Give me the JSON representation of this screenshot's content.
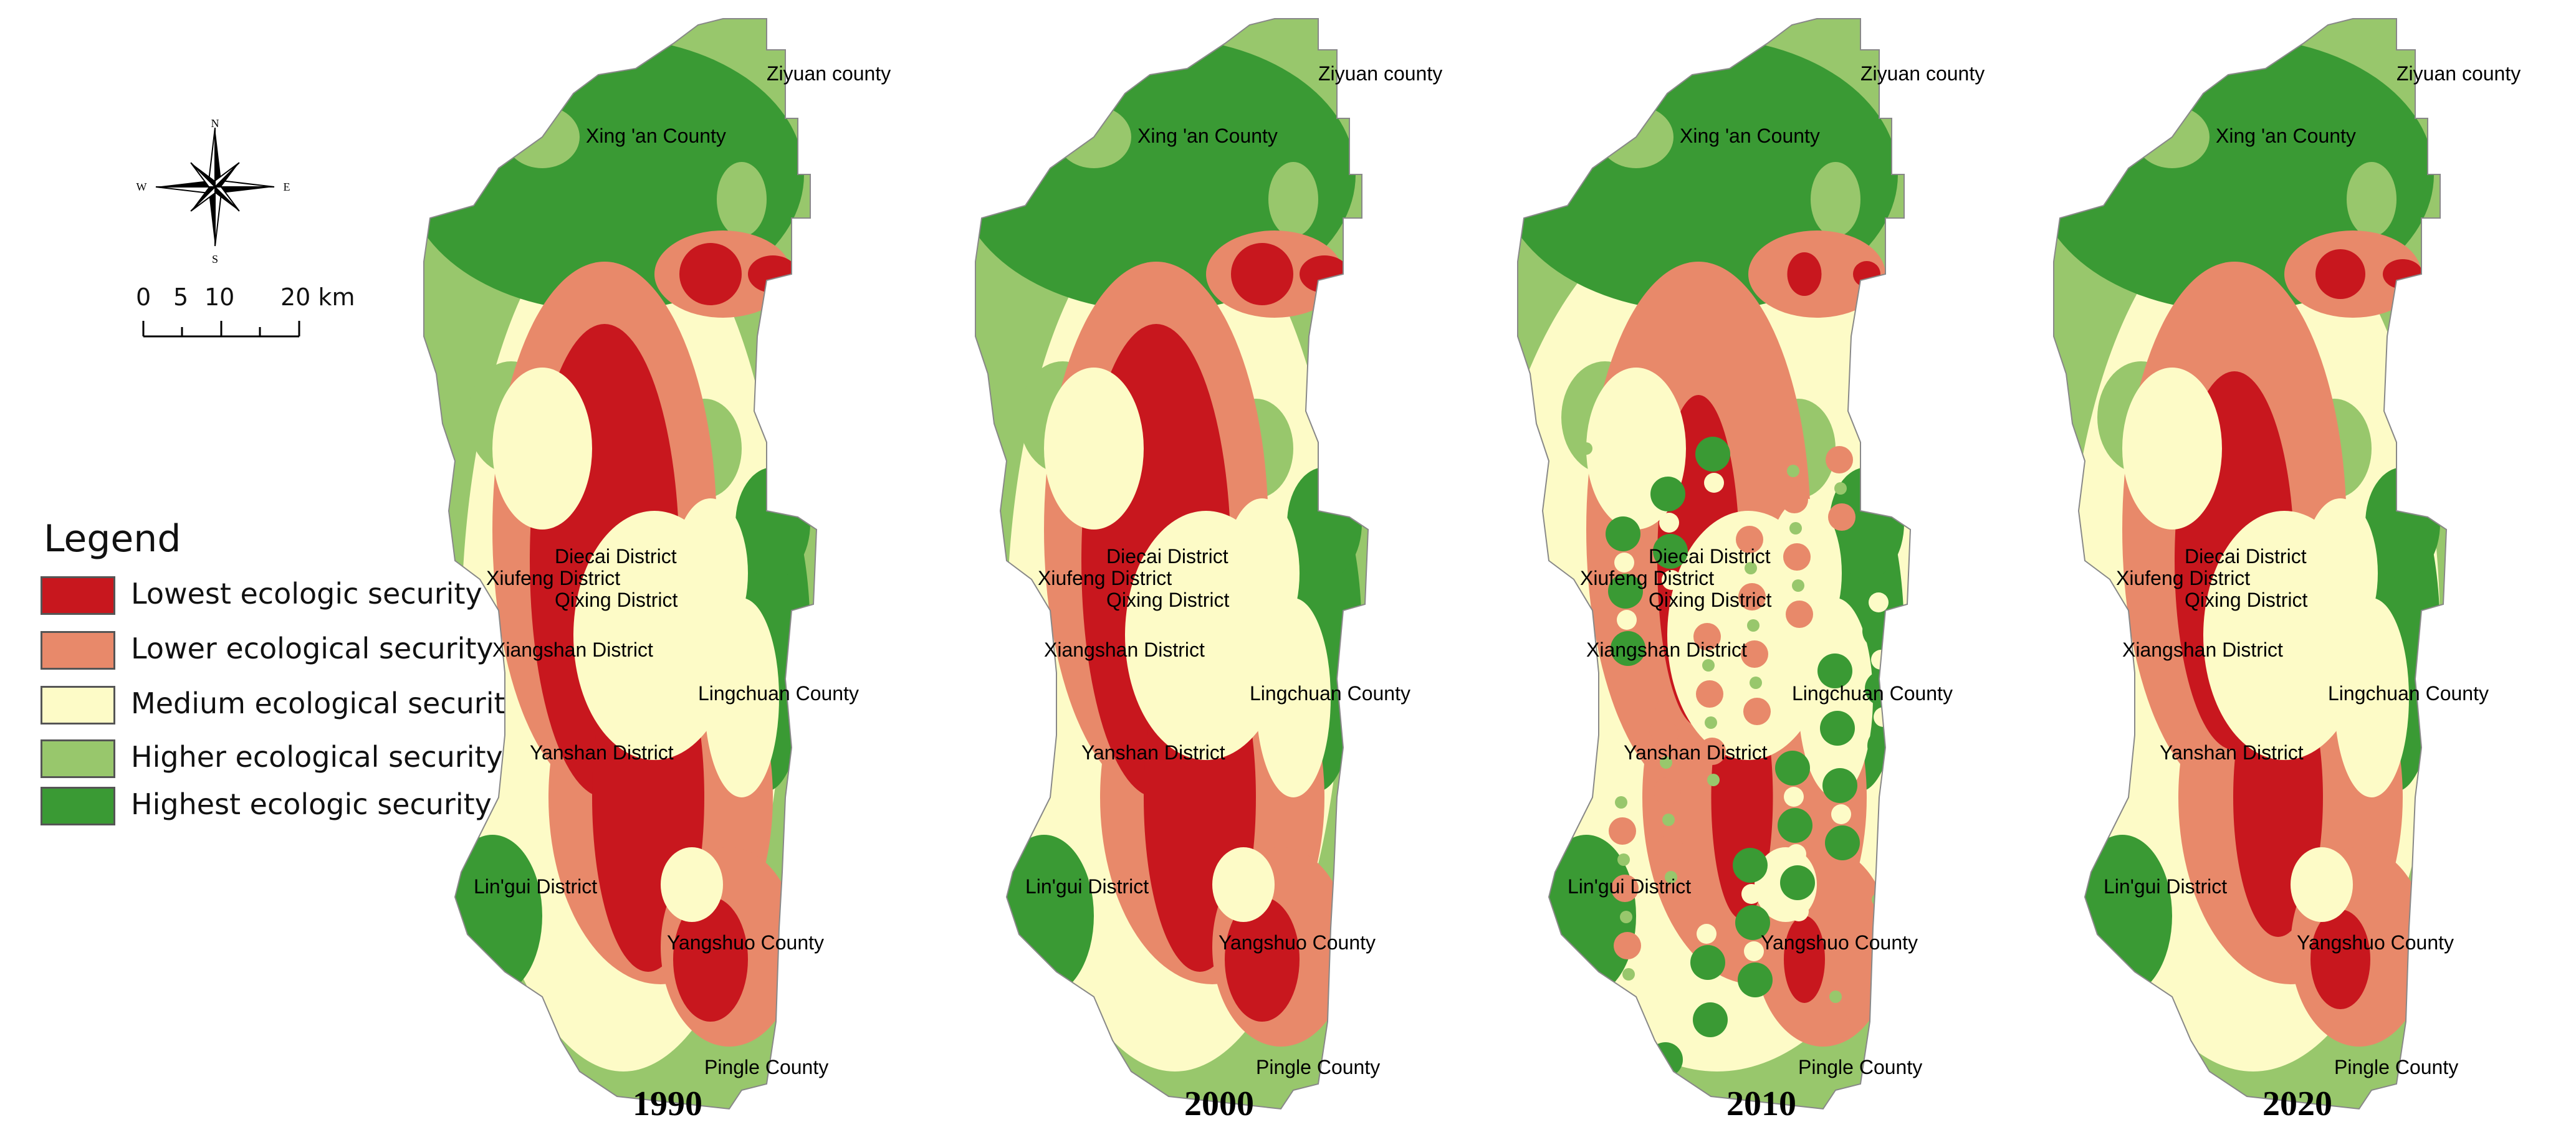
{
  "legend": {
    "title": "Legend",
    "items": [
      {
        "label": "Lowest ecologic security",
        "color": "#c8171e"
      },
      {
        "label": "Lower ecological security",
        "color": "#e8896a"
      },
      {
        "label": "Medium ecological security",
        "color": "#fdfbc7"
      },
      {
        "label": "Higher ecological security",
        "color": "#98c76c"
      },
      {
        "label": "Highest ecologic security",
        "color": "#3a9a34"
      }
    ]
  },
  "compass": {
    "n": "N",
    "s": "S",
    "e": "E",
    "w": "W"
  },
  "scale": {
    "ticks": [
      "0",
      "5",
      "10",
      "20 km"
    ]
  },
  "panels": [
    {
      "year": "1990"
    },
    {
      "year": "2000"
    },
    {
      "year": "2010"
    },
    {
      "year": "2020"
    }
  ],
  "place_names": {
    "ziyuan": "Ziyuan county",
    "xingan": "Xing 'an County",
    "diecai": "Diecai District",
    "xiufeng": "Xiufeng District",
    "qixing": "Qixing District",
    "xiangshan": "Xiangshan District",
    "lingchuan": "Lingchuan County",
    "yanshan": "Yanshan District",
    "lingui": "Lin'gui District",
    "yangshuo": "Yangshuo County",
    "pingle": "Pingle County"
  }
}
